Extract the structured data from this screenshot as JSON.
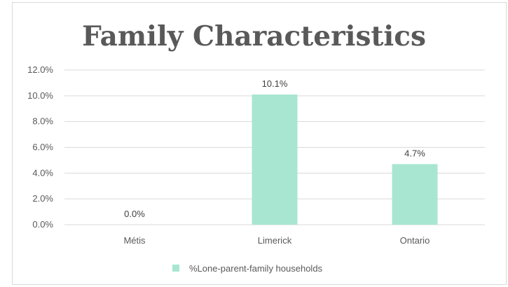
{
  "chart_data": {
    "type": "bar",
    "title": "Family Characteristics",
    "categories": [
      "Métis",
      "Limerick",
      "Ontario"
    ],
    "series": [
      {
        "name": "%Lone-parent-family households",
        "values": [
          0.0,
          10.1,
          4.7
        ],
        "color": "#a8e6d2"
      }
    ],
    "data_labels": [
      "0.0%",
      "10.1%",
      "4.7%"
    ],
    "ylim": [
      0,
      12
    ],
    "yticks": [
      0,
      2,
      4,
      6,
      8,
      10,
      12
    ],
    "ytick_labels": [
      "0.0%",
      "2.0%",
      "4.0%",
      "6.0%",
      "8.0%",
      "10.0%",
      "12.0%"
    ],
    "grid": true,
    "legend_position": "bottom",
    "xlabel": "",
    "ylabel": ""
  }
}
